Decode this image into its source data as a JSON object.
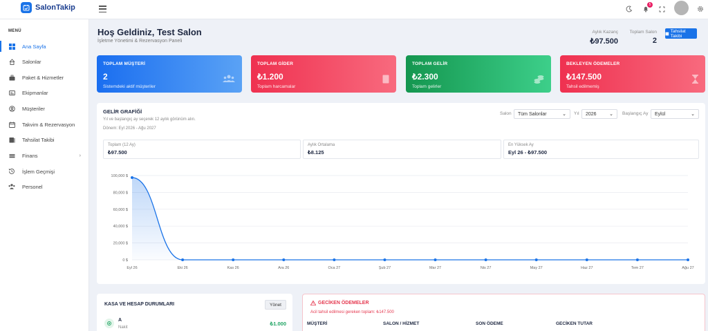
{
  "app": {
    "name": "SalonTakip"
  },
  "sidebar": {
    "menu_title": "MENÜ",
    "items": [
      {
        "label": "Ana Sayfa",
        "icon": "dashboard-icon",
        "active": true
      },
      {
        "label": "Salonlar",
        "icon": "home-icon"
      },
      {
        "label": "Paket & Hizmetler",
        "icon": "package-icon"
      },
      {
        "label": "Ekipmanlar",
        "icon": "equipment-icon"
      },
      {
        "label": "Müşteriler",
        "icon": "customers-icon"
      },
      {
        "label": "Takvim & Rezervasyon",
        "icon": "calendar-icon"
      },
      {
        "label": "Tahsilat Takibi",
        "icon": "collection-icon"
      },
      {
        "label": "Finans",
        "icon": "finance-icon",
        "has_children": true
      },
      {
        "label": "İşlem Geçmişi",
        "icon": "history-icon"
      },
      {
        "label": "Personel",
        "icon": "staff-icon"
      }
    ]
  },
  "topbar": {
    "notification_count": "5"
  },
  "header": {
    "title": "Hoş Geldiniz, Test Salon",
    "subtitle": "İşletme Yönetimi & Rezervasyon Paneli",
    "monthly_income_label": "Aylık Kazanç",
    "monthly_income_value": "₺97.500",
    "total_salon_label": "Toplam Salon",
    "total_salon_value": "2",
    "tahsilat_button": "Tahsilat Takibi"
  },
  "cards": [
    {
      "title": "TOPLAM MÜŞTERİ",
      "value": "2",
      "sub": "Sistemdeki aktif müşteriler",
      "icon": "users-icon",
      "color": "#1a73e8"
    },
    {
      "title": "TOPLAM GİDER",
      "value": "₺1.200",
      "sub": "Toplam harcamalar",
      "icon": "receipt-icon",
      "color": "#ef3b52"
    },
    {
      "title": "TOPLAM GELİR",
      "value": "₺2.300",
      "sub": "Toplam gelirler",
      "icon": "coins-icon",
      "color": "#1fa463"
    },
    {
      "title": "BEKLEYEN ÖDEMELER",
      "value": "₺147.500",
      "sub": "Tahsil edilmemiş",
      "icon": "hourglass-icon",
      "color": "#ef3b52"
    }
  ],
  "income_chart": {
    "title": "GELİR GRAFİĞİ",
    "subtitle": "Yıl ve başlangıç ay seçerek 12 aylık görünüm alın.",
    "period": "Dönem: Eyl 2026 - Ağu 2027",
    "filters": {
      "salon_label": "Salon",
      "salon_value": "Tüm Salonlar",
      "year_label": "Yıl",
      "year_value": "2026",
      "start_month_label": "Başlangıç Ay",
      "start_month_value": "Eylül"
    },
    "summary": [
      {
        "label": "Toplam (12 Ay)",
        "value": "₺97.500"
      },
      {
        "label": "Aylık Ortalama",
        "value": "₺8.125"
      },
      {
        "label": "En Yüksek Ay",
        "value": "Eyl 26 - ₺97.500"
      }
    ]
  },
  "chart_data": {
    "type": "area",
    "categories": [
      "Eyl 26",
      "Eki 26",
      "Kas 26",
      "Ara 26",
      "Oca 27",
      "Şub 27",
      "Mar 27",
      "Nis 27",
      "May 27",
      "Haz 27",
      "Tem 27",
      "Ağu 27"
    ],
    "values": [
      97500,
      0,
      0,
      0,
      0,
      0,
      0,
      0,
      0,
      0,
      0,
      0
    ],
    "y_ticks": [
      0,
      20000,
      40000,
      60000,
      80000,
      100000
    ],
    "y_tick_labels": [
      "0 $",
      "20,000 $",
      "40,000 $",
      "60,000 $",
      "80,000 $",
      "100,000 $"
    ],
    "ylim": [
      0,
      100000
    ],
    "grid": true,
    "line_color": "#1a73e8"
  },
  "kasa": {
    "title": "KASA VE HESAP DURUMLARI",
    "manage_button": "Yönet",
    "accounts": [
      {
        "name": "A",
        "type": "Nakit",
        "amount": "₺1.000"
      }
    ]
  },
  "late_payments": {
    "title": "GECİKEN ÖDEMELER",
    "subtitle": "Acil tahsil edilmesi gereken toplam: ₺147.500",
    "columns": [
      "MÜŞTERİ",
      "SALON / HİZMET",
      "SON ÖDEME",
      "GECİKEN TUTAR"
    ]
  }
}
